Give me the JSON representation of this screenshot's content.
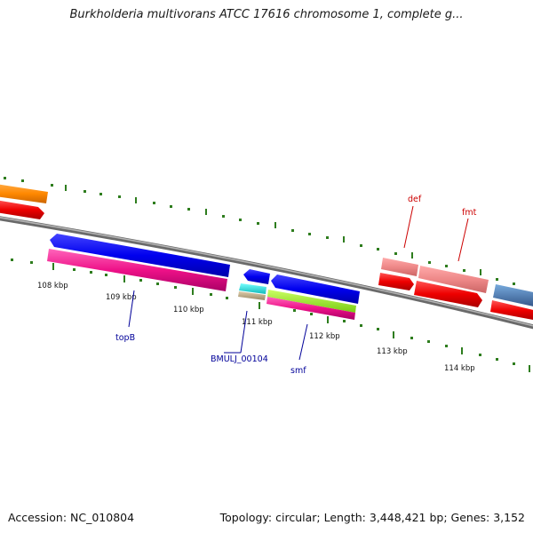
{
  "title": "Burkholderia multivorans ATCC 17616 chromosome 1, complete g...",
  "footer": {
    "accession": "Accession: NC_010804",
    "summary": "Topology: circular; Length: 3,448,421 bp; Genes: 3,152"
  },
  "scale_labels": [
    "108 kbp",
    "109 kbp",
    "110 kbp",
    "111 kbp",
    "112 kbp",
    "113 kbp",
    "114 kbp"
  ],
  "genes": [
    {
      "name": "def",
      "color": "#cc0000"
    },
    {
      "name": "fmt",
      "color": "#cc0000"
    },
    {
      "name": "topB",
      "color": "#000099"
    },
    {
      "name": "BMULJ_00104",
      "color": "#000099"
    },
    {
      "name": "smf",
      "color": "#000099"
    }
  ],
  "colors": {
    "backbone": "#7f7f7f",
    "ticks": "#2e7d1e",
    "cds_forward": "#ee0000",
    "cds_reverse": "#0000ee",
    "cds_pink": "#ee1188",
    "cds_salmon": "#ee8888",
    "cds_orange": "#ff8800",
    "cds_cyan": "#22dddd",
    "cds_lime": "#99ee22",
    "cds_steel": "#4477aa",
    "cds_tan": "#bbaa88"
  }
}
